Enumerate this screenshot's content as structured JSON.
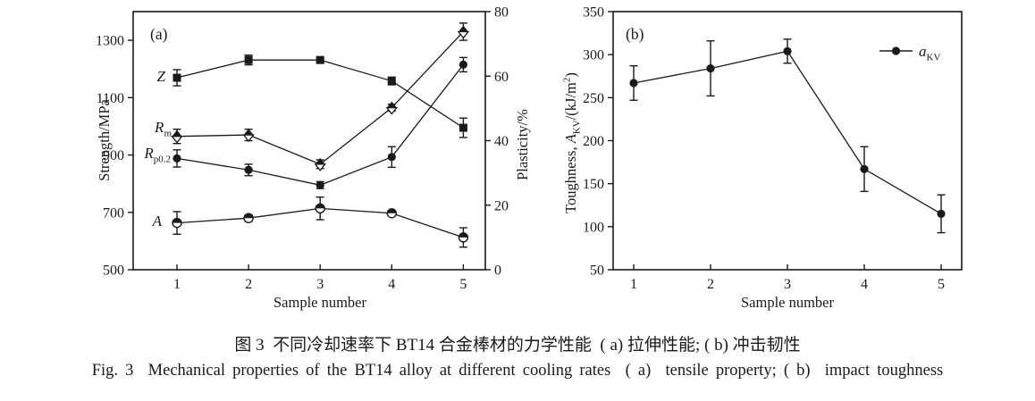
{
  "figure": {
    "caption_zh": "图 3  不同冷却速率下 BT14 合金棒材的力学性能  ( a) 拉伸性能; ( b) 冲击韧性",
    "caption_en": "Fig. 3  Mechanical properties of the BT14 alloy at different cooling rates  ( a)  tensile property; ( b)  impact toughness"
  },
  "colors": {
    "ink": "#1a1a1a",
    "background": "#ffffff"
  },
  "chart_data": [
    {
      "type": "line",
      "panel_label": "(a)",
      "x": [
        1,
        2,
        3,
        4,
        5
      ],
      "xlabel": "Sample number",
      "ylabel_left": "Strength/MPa",
      "ylabel_right": "Plasticity/%",
      "ylim_left": [
        500,
        1400
      ],
      "yticks_left": [
        500,
        700,
        900,
        1100,
        1300
      ],
      "ylim_right": [
        0,
        80
      ],
      "yticks_right": [
        0,
        20,
        40,
        60,
        80
      ],
      "grid": false,
      "series": [
        {
          "name": "Z",
          "axis": "right",
          "marker": "square-filled",
          "label": "Z",
          "label_parts": [
            {
              "t": "Z",
              "i": 1
            }
          ],
          "values": [
            59.5,
            65,
            65,
            58.5,
            44
          ],
          "errors": [
            2.5,
            1.5,
            0.7,
            1.2,
            3
          ]
        },
        {
          "name": "Rm",
          "axis": "left",
          "marker": "diamond-halftop",
          "label": "Rm",
          "label_parts": [
            {
              "t": "R",
              "i": 1
            },
            {
              "t": "m",
              "sub": 1
            }
          ],
          "values": [
            965,
            970,
            868,
            1065,
            1330
          ],
          "errors": [
            25,
            20,
            15,
            12,
            30
          ]
        },
        {
          "name": "Rp0.2",
          "axis": "left",
          "marker": "circle-filled",
          "label": "Rp0.2",
          "label_parts": [
            {
              "t": "R",
              "i": 1
            },
            {
              "t": "p0.2",
              "sub": 1
            }
          ],
          "values": [
            888,
            848,
            795,
            893,
            1215
          ],
          "errors": [
            30,
            20,
            12,
            36,
            25
          ]
        },
        {
          "name": "A",
          "axis": "right",
          "marker": "circle-halftop",
          "label": "A",
          "label_parts": [
            {
              "t": "A",
              "i": 1
            }
          ],
          "values": [
            14.5,
            16,
            19,
            17.5,
            10
          ],
          "errors": [
            3.5,
            1,
            3.5,
            0.8,
            3
          ]
        }
      ]
    },
    {
      "type": "line",
      "panel_label": "(b)",
      "x": [
        1,
        2,
        3,
        4,
        5
      ],
      "xlabel": "Sample number",
      "ylabel": "Toughness, A_KV/(kJ/m2)",
      "ylabel_parts": [
        {
          "t": "Toughness, "
        },
        {
          "t": "A",
          "i": 1
        },
        {
          "t": "KV",
          "sub": 1
        },
        {
          "t": "/(kJ/m"
        },
        {
          "t": "2",
          "sup": 1
        },
        {
          "t": ")"
        }
      ],
      "ylim": [
        50,
        350
      ],
      "yticks": [
        50,
        100,
        150,
        200,
        250,
        300,
        350
      ],
      "grid": false,
      "legend_position": "top-right",
      "series": [
        {
          "name": "aKV",
          "axis": "left",
          "marker": "circle-filled",
          "legend": "aKV",
          "legend_parts": [
            {
              "t": "a",
              "i": 1
            },
            {
              "t": "KV",
              "sub": 1
            }
          ],
          "values": [
            267,
            284,
            304,
            167,
            115
          ],
          "errors": [
            20,
            32,
            14,
            26,
            22
          ]
        }
      ]
    }
  ]
}
